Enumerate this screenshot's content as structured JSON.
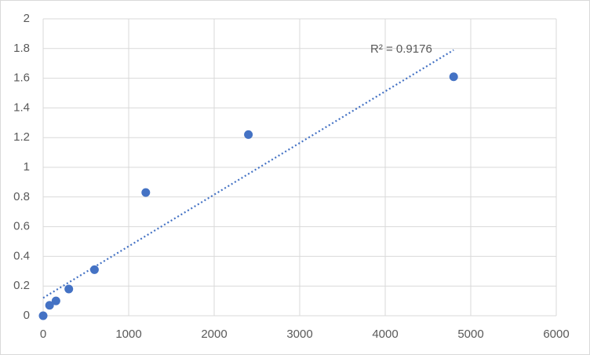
{
  "chart_data": {
    "type": "scatter",
    "series": [
      {
        "color": "#4472c4",
        "x": [
          0,
          75,
          150,
          300,
          600,
          1200,
          2400,
          4800
        ],
        "values": [
          0,
          0.07,
          0.1,
          0.18,
          0.31,
          0.83,
          1.22,
          1.61
        ]
      }
    ],
    "trendline": {
      "color": "#4472c4",
      "x": [
        0,
        4800
      ],
      "values": [
        0.12,
        1.79
      ]
    },
    "annotation": "R² = 0.9176",
    "xlim": [
      0,
      6000
    ],
    "xticks": [
      0,
      1000,
      2000,
      3000,
      4000,
      5000,
      6000
    ],
    "ylim": [
      0,
      2
    ],
    "yticks": [
      0,
      0.2,
      0.4,
      0.6,
      0.8,
      1,
      1.2,
      1.4,
      1.6,
      1.8,
      2
    ],
    "grid": true
  }
}
